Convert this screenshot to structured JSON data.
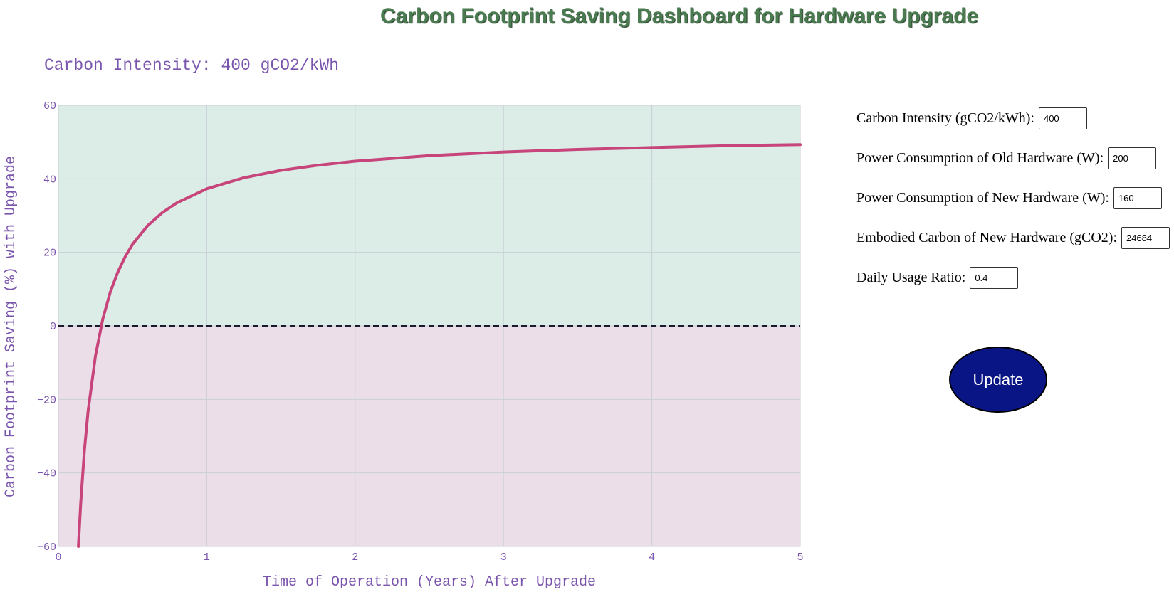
{
  "title": "Carbon Footprint Saving Dashboard for Hardware Upgrade",
  "controls": [
    {
      "label": "Carbon Intensity (gCO2/kWh):",
      "value": "400"
    },
    {
      "label": "Power Consumption of Old Hardware (W):",
      "value": "200"
    },
    {
      "label": "Power Consumption of New Hardware (W):",
      "value": "160"
    },
    {
      "label": "Embodied Carbon of New Hardware (gCO2):",
      "value": "24684"
    },
    {
      "label": "Daily Usage Ratio:",
      "value": "0.4"
    }
  ],
  "update_label": "Update",
  "colors": {
    "line": "#c7457a",
    "positive_region": "#dbede6",
    "negative_region": "#ecdee8",
    "text": "#7a55ad",
    "title": "#4a7a4f",
    "button": "#0a1585"
  },
  "chart_data": {
    "type": "line",
    "title": "Carbon Intensity: 400 gCO2/kWh",
    "xlabel": "Time of Operation (Years) After Upgrade",
    "ylabel": "Carbon Footprint Saving (%) with Upgrade",
    "xlim": [
      0,
      5
    ],
    "ylim": [
      -60,
      60
    ],
    "xticks": [
      0,
      1,
      2,
      3,
      4,
      5
    ],
    "yticks": [
      -60,
      -40,
      -20,
      0,
      20,
      40,
      60
    ],
    "grid": true,
    "reference_line": {
      "y": 0,
      "style": "dashed"
    },
    "series": [
      {
        "x": [
          0.135,
          0.15,
          0.175,
          0.2,
          0.25,
          0.3,
          0.35,
          0.4,
          0.45,
          0.5,
          0.6,
          0.7,
          0.8,
          1.0,
          1.25,
          1.5,
          1.75,
          2.0,
          2.5,
          3.0,
          3.5,
          4.0,
          4.5,
          5.0
        ],
        "values": [
          -60.0,
          -48.4,
          -34.0,
          -23.2,
          -8.1,
          2.0,
          9.2,
          14.6,
          18.8,
          22.2,
          27.2,
          30.8,
          33.5,
          37.3,
          40.3,
          42.3,
          43.7,
          44.8,
          46.3,
          47.3,
          48.0,
          48.5,
          49.0,
          49.3
        ]
      }
    ]
  }
}
